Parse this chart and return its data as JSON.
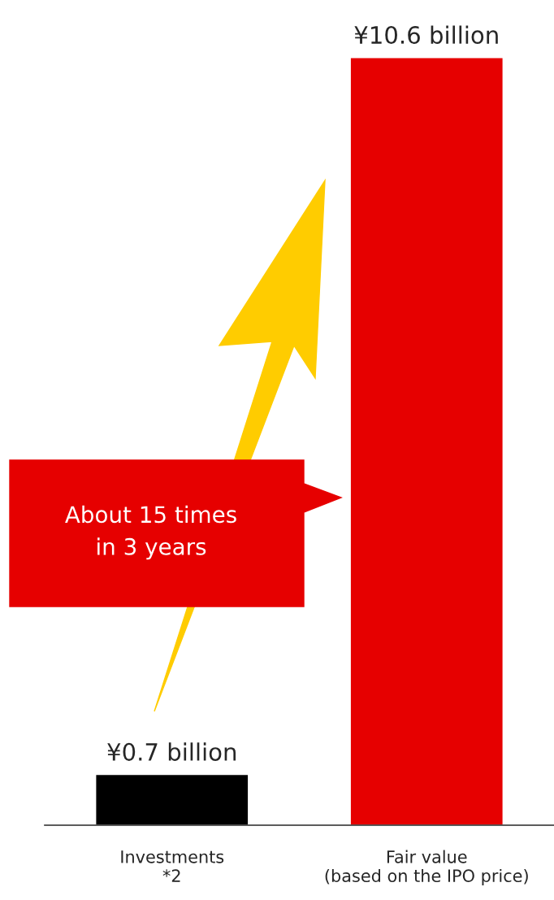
{
  "chart_data": {
    "type": "bar",
    "categories": [
      "Investments\n*2",
      "Fair value\n(based on the IPO price)"
    ],
    "values": [
      0.7,
      10.6
    ],
    "colors": [
      "#000000",
      "#e60000"
    ],
    "value_labels": [
      "¥0.7 billion",
      "¥10.6 billion"
    ],
    "annotations": [
      "About 15 times\nin 3 years"
    ],
    "grid": false,
    "legend": false
  }
}
